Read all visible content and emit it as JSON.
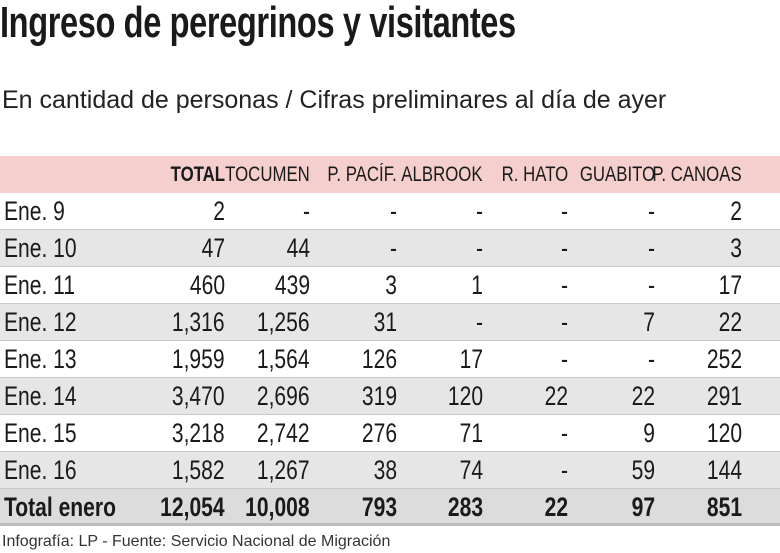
{
  "title": "Ingreso de peregrinos y visitantes",
  "subtitle": "En cantidad de personas / Cifras preliminares al día de ayer",
  "footer": "Infografía: LP - Fuente: Servicio Nacional de Migración",
  "colors": {
    "header_bg": "#f5cfcd",
    "stripe_bg": "#e6e6e7",
    "total_bg": "#dcdcdc"
  },
  "chart_data": {
    "type": "table",
    "title": "Ingreso de peregrinos y visitantes",
    "columns": [
      "",
      "TOTAL",
      "TOCUMEN",
      "P. PACÍF.",
      "ALBROOK",
      "R. HATO",
      "GUABITO",
      "P. CANOAS"
    ],
    "rows": [
      [
        "Ene. 9",
        "2",
        "-",
        "-",
        "-",
        "-",
        "-",
        "2"
      ],
      [
        "Ene. 10",
        "47",
        "44",
        "-",
        "-",
        "-",
        "-",
        "3"
      ],
      [
        "Ene. 11",
        "460",
        "439",
        "3",
        "1",
        "-",
        "-",
        "17"
      ],
      [
        "Ene. 12",
        "1,316",
        "1,256",
        "31",
        "-",
        "-",
        "7",
        "22"
      ],
      [
        "Ene. 13",
        "1,959",
        "1,564",
        "126",
        "17",
        "-",
        "-",
        "252"
      ],
      [
        "Ene. 14",
        "3,470",
        "2,696",
        "319",
        "120",
        "22",
        "22",
        "291"
      ],
      [
        "Ene. 15",
        "3,218",
        "2,742",
        "276",
        "71",
        "-",
        "9",
        "120"
      ],
      [
        "Ene. 16",
        "1,582",
        "1,267",
        "38",
        "74",
        "-",
        "59",
        "144"
      ]
    ],
    "total_row": [
      "Total enero",
      "12,054",
      "10,008",
      "793",
      "283",
      "22",
      "97",
      "851"
    ]
  }
}
